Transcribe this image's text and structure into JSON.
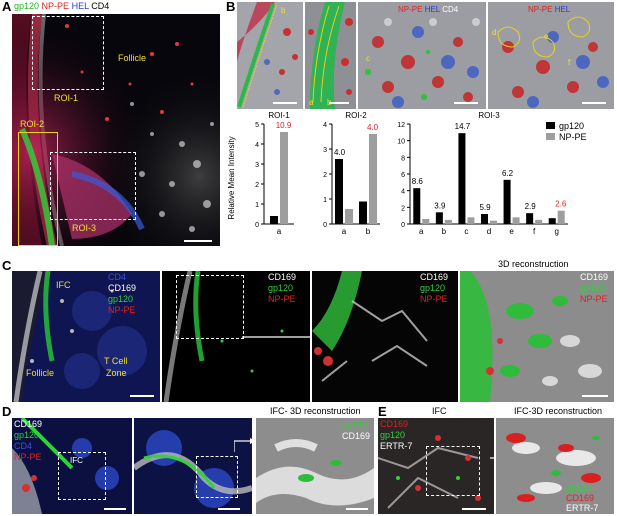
{
  "panels": {
    "A": {
      "letter": "A",
      "legend": {
        "gp120": "gp120",
        "np": "NP-PE",
        "hel": "HEL",
        "cd4": "CD4"
      },
      "follicle": "Follicle",
      "roi1": "ROI-1",
      "roi2": "ROI-2",
      "roi3": "ROI-3"
    },
    "B": {
      "letter": "B",
      "legend_img3": {
        "np": "NP-PE",
        "hel": "HEL",
        "cd4": "CD4"
      },
      "legend_img4": {
        "np": "NP-PE",
        "hel": "HEL"
      },
      "img_letters": {
        "i1": "b",
        "i2a": "a",
        "i2b": "b",
        "i3": "c",
        "i4a": "d",
        "i4b": "e",
        "i4c": "f"
      }
    },
    "C": {
      "letter": "C",
      "p1": {
        "cd4": "CD4",
        "cd169": "CD169",
        "gp120": "gp120",
        "np": "NP-PE",
        "ifc": "IFC",
        "follicle": "Follicle",
        "tcell": "T Cell",
        "zone": "Zone"
      },
      "p2": {
        "cd169": "CD169",
        "gp120": "gp120",
        "np": "NP-PE"
      },
      "p3": {
        "cd169": "CD169",
        "gp120": "gp120",
        "np": "NP-PE"
      },
      "p4": {
        "title": "3D reconstruction",
        "cd169": "CD169",
        "gp120": "gp120",
        "np": "NP-PE"
      }
    },
    "D": {
      "letter": "D",
      "legend": {
        "cd169": "CD169",
        "gp120": "gp120",
        "cd4": "CD4",
        "np": "NP-PE"
      },
      "ifc": "IFC",
      "title3d": "IFC- 3D reconstruction",
      "legend3d": {
        "gp120": "gp120",
        "cd169": "CD169"
      }
    },
    "E": {
      "letter": "E",
      "legend": {
        "cd169": "CD169",
        "gp120": "gp120",
        "ertr7": "ERTR-7"
      },
      "ifc": "IFC",
      "title3d": "IFC-3D reconstruction",
      "legend3d": {
        "gp120": "gp120",
        "cd169": "CD169",
        "ertr7": "ERTR-7"
      }
    }
  },
  "chart_data": [
    {
      "type": "bar",
      "title": "ROI-1",
      "categories": [
        "a"
      ],
      "series": [
        {
          "name": "gp120",
          "values": [
            0.4
          ]
        },
        {
          "name": "NP-PE",
          "values": [
            4.6
          ]
        }
      ],
      "labels": [
        "10.9"
      ],
      "ylim": [
        0,
        5
      ],
      "yticks": [
        "0",
        "1",
        "2",
        "3",
        "4",
        "5"
      ],
      "ylabel": "Relative Mean Intensity"
    },
    {
      "type": "bar",
      "title": "ROI-2",
      "categories": [
        "a",
        "b"
      ],
      "series": [
        {
          "name": "gp120",
          "values": [
            2.6,
            0.9
          ]
        },
        {
          "name": "NP-PE",
          "values": [
            0.6,
            3.6
          ]
        }
      ],
      "labels": [
        "4.0",
        "4.0"
      ],
      "ylim": [
        0,
        4
      ],
      "yticks": [
        "0",
        "1",
        "2",
        "3",
        "4"
      ]
    },
    {
      "type": "bar",
      "title": "ROI-3",
      "categories": [
        "a",
        "b",
        "c",
        "d",
        "e",
        "f",
        "g"
      ],
      "series": [
        {
          "name": "gp120",
          "values": [
            4.3,
            1.4,
            10.9,
            1.2,
            5.3,
            1.3,
            0.7
          ]
        },
        {
          "name": "NP-PE",
          "values": [
            0.6,
            0.5,
            0.8,
            0.4,
            0.8,
            0.5,
            1.6
          ]
        }
      ],
      "labels": [
        "8.6",
        "3.9",
        "14.7",
        "5.9",
        "6.2",
        "2.9",
        "2.6"
      ],
      "ylim": [
        0,
        12
      ],
      "yticks": [
        "0",
        "2",
        "4",
        "6",
        "8",
        "10",
        "12"
      ],
      "legend": [
        "gp120",
        "NP-PE"
      ]
    }
  ],
  "colors": {
    "gp120": "#000000",
    "np": "#9e9e9e",
    "red_label": "#e32020",
    "roi_yellow": "#e8d21a"
  }
}
